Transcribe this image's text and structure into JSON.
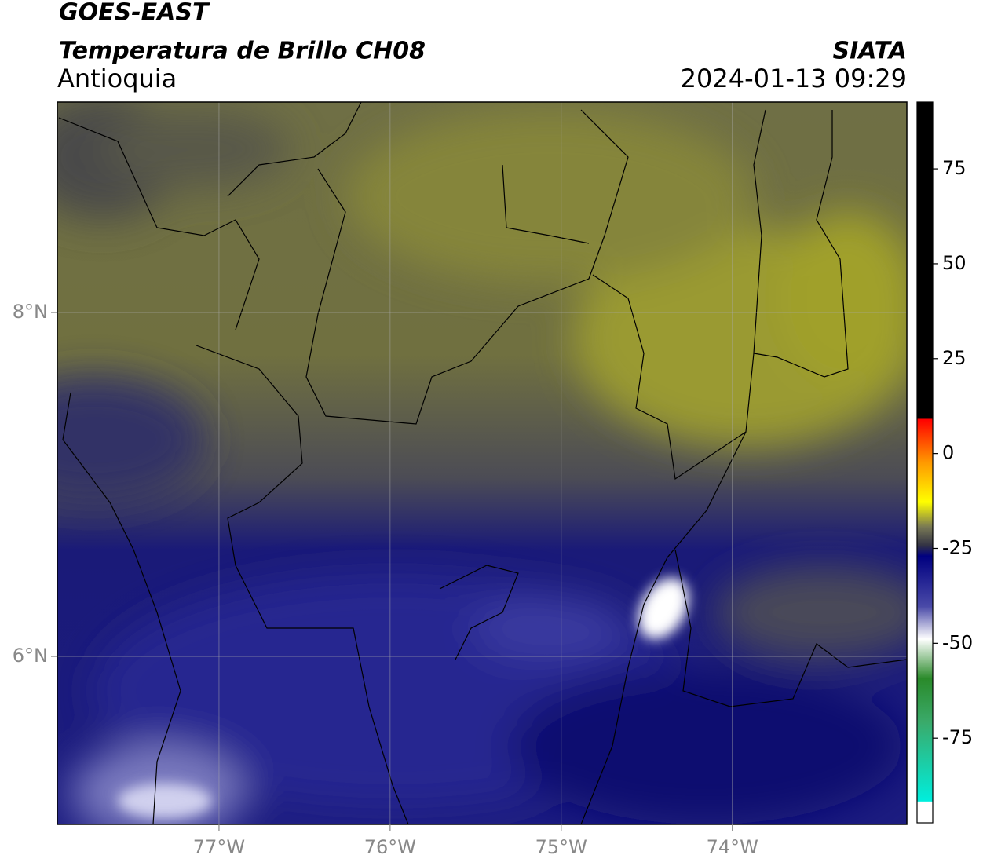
{
  "header": {
    "satellite": "GOES-EAST",
    "product": "Temperatura de Brillo CH08",
    "region": "Antioquia",
    "agency": "SIATA",
    "datetime": "2024-01-13 09:29"
  },
  "map": {
    "lon_lim": [
      -77.945,
      -72.98
    ],
    "lat_lim": [
      5.023,
      9.224
    ],
    "lon_ticks": [
      {
        "value": -77,
        "label": "77°W"
      },
      {
        "value": -76,
        "label": "76°W"
      },
      {
        "value": -75,
        "label": "75°W"
      },
      {
        "value": -74,
        "label": "74°W"
      }
    ],
    "lat_ticks": [
      {
        "value": 8,
        "label": "8°N"
      },
      {
        "value": 6,
        "label": "6°N"
      }
    ]
  },
  "colorbar": {
    "lim": [
      -97.3,
      92.6
    ],
    "ticks": [
      75,
      50,
      25,
      0,
      -25,
      -50,
      -75
    ]
  }
}
